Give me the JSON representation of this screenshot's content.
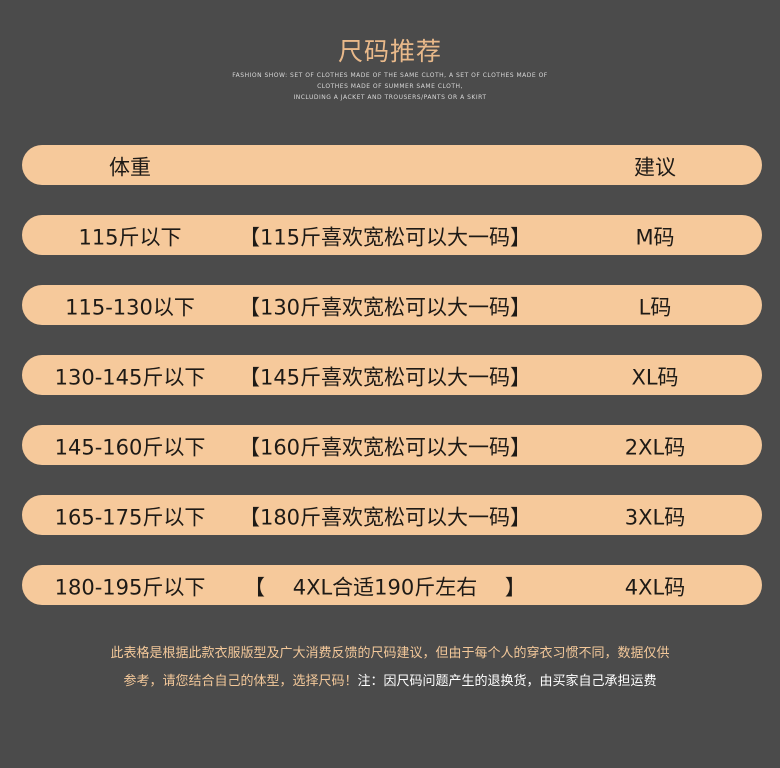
{
  "title": "尺码推荐",
  "subtitle_lines": [
    "FASHION SHOW: SET OF CLOTHES MADE OF THE SAME CLOTH, A SET OF CLOTHES MADE OF",
    "CLOTHES MADE OF SUMMER SAME CLOTH,",
    "INCLUDING A JACKET AND TROUSERS/PANTS OR A SKIRT"
  ],
  "header": {
    "weight": "体重",
    "advice": "建议"
  },
  "rows": [
    {
      "weight": "115斤以下",
      "note": "【115斤喜欢宽松可以大一码】",
      "size": "M码"
    },
    {
      "weight": "115-130以下",
      "note": "【130斤喜欢宽松可以大一码】",
      "size": "L码"
    },
    {
      "weight": "130-145斤以下",
      "note": "【145斤喜欢宽松可以大一码】",
      "size": "XL码"
    },
    {
      "weight": "145-160斤以下",
      "note": "【160斤喜欢宽松可以大一码】",
      "size": "2XL码"
    },
    {
      "weight": "165-175斤以下",
      "note": "【180斤喜欢宽松可以大一码】",
      "size": "3XL码"
    },
    {
      "weight": "180-195斤以下",
      "note": "【　 4XL合适190斤左右　 】",
      "size": "4XL码"
    }
  ],
  "footer": {
    "line1": "此表格是根据此款衣服版型及广大消费反馈的尺码建议，但由于每个人的穿衣习惯不同，数据仅供",
    "line2a": "参考，请您结合自己的体型，选择尺码！",
    "line2b": "注：因尺码问题产生的退换货，由买家自己承担运费"
  },
  "colors": {
    "background": "#4b4b4b",
    "pill": "#f6c99b",
    "title": "#e9b98a"
  }
}
